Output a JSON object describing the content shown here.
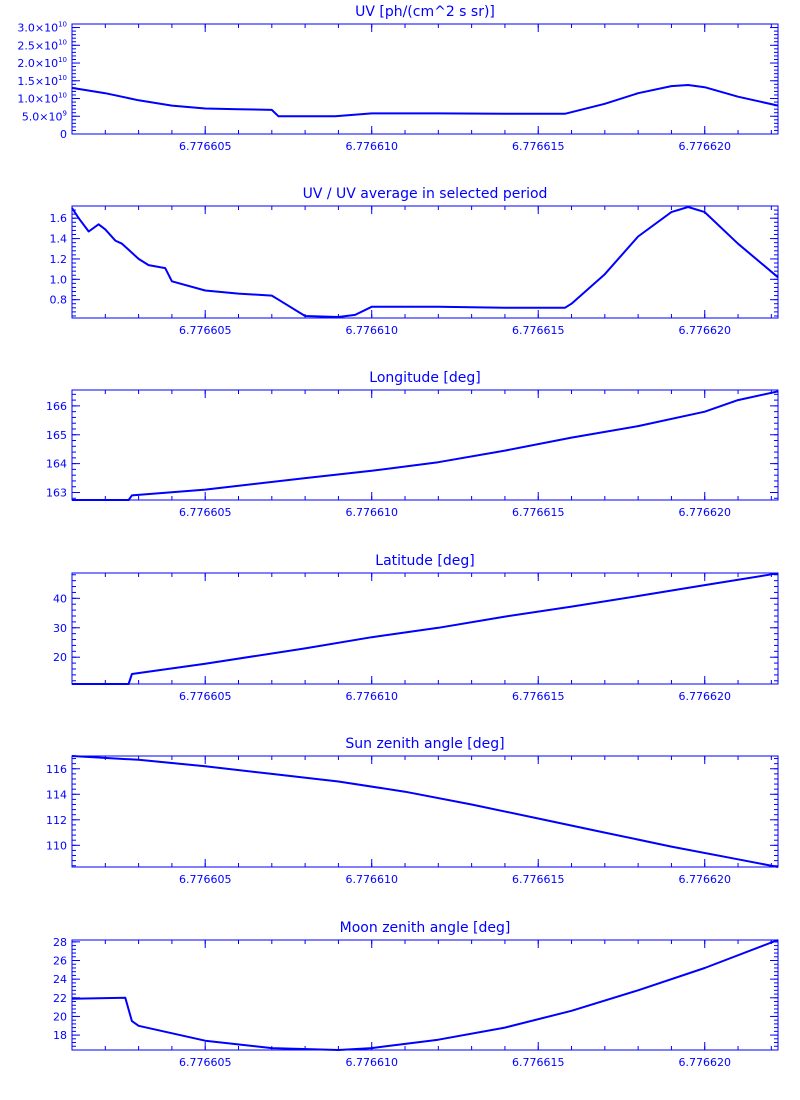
{
  "colors": {
    "ink": "#0000ff",
    "background": "#ffffff"
  },
  "chart_data": [
    {
      "type": "line",
      "title": "UV [ph/(cm^2 s sr)]",
      "xlim": [
        6.776601,
        6.7766222
      ],
      "ylim": [
        0,
        31000000000.0
      ],
      "xticks": [
        6.776605,
        6.77661,
        6.776615,
        6.77662
      ],
      "xtick_labels": [
        "6.776605",
        "6.776610",
        "6.776615",
        "6.776620"
      ],
      "yticks": [
        {
          "value": 0,
          "mant": "0",
          "exp": ""
        },
        {
          "value": 5000000000.0,
          "mant": "5.0×10",
          "exp": "9"
        },
        {
          "value": 10000000000.0,
          "mant": "1.0×10",
          "exp": "10"
        },
        {
          "value": 15000000000.0,
          "mant": "1.5×10",
          "exp": "10"
        },
        {
          "value": 20000000000.0,
          "mant": "2.0×10",
          "exp": "10"
        },
        {
          "value": 25000000000.0,
          "mant": "2.5×10",
          "exp": "10"
        },
        {
          "value": 30000000000.0,
          "mant": "3.0×10",
          "exp": "10"
        }
      ],
      "grid": false,
      "series": [
        {
          "x": [
            6.776601,
            6.776602,
            6.776603,
            6.776604,
            6.776605,
            6.776606,
            6.776607,
            6.7766072,
            6.776608,
            6.7766089,
            6.77661,
            6.776612,
            6.776614,
            6.7766158,
            6.776617,
            6.776618,
            6.776619,
            6.7766195,
            6.77662,
            6.776621,
            6.7766222
          ],
          "y": [
            13000000000.0,
            11500000000.0,
            9500000000.0,
            8000000000.0,
            7200000000.0,
            7000000000.0,
            6800000000.0,
            5000000000.0,
            5000000000.0,
            5000000000.0,
            5800000000.0,
            5800000000.0,
            5700000000.0,
            5700000000.0,
            8500000000.0,
            11500000000.0,
            13500000000.0,
            13800000000.0,
            13200000000.0,
            10500000000.0,
            8000000000.0
          ]
        }
      ]
    },
    {
      "type": "line",
      "title": "UV / UV average in selected period",
      "xlim": [
        6.776601,
        6.7766222
      ],
      "ylim": [
        0.62,
        1.72
      ],
      "xticks": [
        6.776605,
        6.77661,
        6.776615,
        6.77662
      ],
      "xtick_labels": [
        "6.776605",
        "6.776610",
        "6.776615",
        "6.776620"
      ],
      "yticks": [
        {
          "value": 0.8,
          "mant": "0.8",
          "exp": ""
        },
        {
          "value": 1.0,
          "mant": "1.0",
          "exp": ""
        },
        {
          "value": 1.2,
          "mant": "1.2",
          "exp": ""
        },
        {
          "value": 1.4,
          "mant": "1.4",
          "exp": ""
        },
        {
          "value": 1.6,
          "mant": "1.6",
          "exp": ""
        }
      ],
      "grid": false,
      "series": [
        {
          "x": [
            6.776601,
            6.7766012,
            6.7766015,
            6.7766018,
            6.776602,
            6.7766023,
            6.7766025,
            6.776603,
            6.7766033,
            6.7766038,
            6.776604,
            6.776605,
            6.776606,
            6.776607,
            6.7766072,
            6.776608,
            6.776609,
            6.7766095,
            6.77661,
            6.776612,
            6.776614,
            6.7766158,
            6.776616,
            6.776617,
            6.776618,
            6.776619,
            6.7766195,
            6.77662,
            6.776621,
            6.7766222
          ],
          "y": [
            1.7,
            1.6,
            1.47,
            1.54,
            1.49,
            1.38,
            1.35,
            1.2,
            1.14,
            1.11,
            0.98,
            0.89,
            0.86,
            0.84,
            0.8,
            0.64,
            0.63,
            0.65,
            0.73,
            0.73,
            0.72,
            0.72,
            0.76,
            1.05,
            1.42,
            1.66,
            1.71,
            1.66,
            1.35,
            1.02
          ]
        }
      ]
    },
    {
      "type": "line",
      "title": "Longitude [deg]",
      "xlim": [
        6.776601,
        6.7766222
      ],
      "ylim": [
        162.74,
        166.55
      ],
      "xticks": [
        6.776605,
        6.77661,
        6.776615,
        6.77662
      ],
      "xtick_labels": [
        "6.776605",
        "6.776610",
        "6.776615",
        "6.776620"
      ],
      "yticks": [
        {
          "value": 163,
          "mant": "163",
          "exp": ""
        },
        {
          "value": 164,
          "mant": "164",
          "exp": ""
        },
        {
          "value": 165,
          "mant": "165",
          "exp": ""
        },
        {
          "value": 166,
          "mant": "166",
          "exp": ""
        }
      ],
      "grid": false,
      "series": [
        {
          "x": [
            6.776601,
            6.7766027,
            6.7766028,
            6.776605,
            6.776608,
            6.77661,
            6.776612,
            6.776614,
            6.776616,
            6.776618,
            6.77662,
            6.776621,
            6.7766222
          ],
          "y": [
            162.74,
            162.74,
            162.9,
            163.1,
            163.5,
            163.75,
            164.05,
            164.45,
            164.9,
            165.3,
            165.8,
            166.2,
            166.5
          ]
        }
      ]
    },
    {
      "type": "line",
      "title": "Latitude [deg]",
      "xlim": [
        6.776601,
        6.7766222
      ],
      "ylim": [
        10.9,
        48.6
      ],
      "xticks": [
        6.776605,
        6.77661,
        6.776615,
        6.77662
      ],
      "xtick_labels": [
        "6.776605",
        "6.776610",
        "6.776615",
        "6.776620"
      ],
      "yticks": [
        {
          "value": 20,
          "mant": "20",
          "exp": ""
        },
        {
          "value": 30,
          "mant": "30",
          "exp": ""
        },
        {
          "value": 40,
          "mant": "40",
          "exp": ""
        }
      ],
      "grid": false,
      "series": [
        {
          "x": [
            6.776601,
            6.7766027,
            6.7766028,
            6.776605,
            6.776608,
            6.77661,
            6.776612,
            6.776614,
            6.776616,
            6.776618,
            6.77662,
            6.7766222
          ],
          "y": [
            10.9,
            10.9,
            14.3,
            17.8,
            23.0,
            26.8,
            30.0,
            33.8,
            37.2,
            40.8,
            44.5,
            48.5
          ]
        }
      ]
    },
    {
      "type": "line",
      "title": "Sun zenith angle [deg]",
      "xlim": [
        6.776601,
        6.7766222
      ],
      "ylim": [
        108.3,
        117.0
      ],
      "xticks": [
        6.776605,
        6.77661,
        6.776615,
        6.77662
      ],
      "xtick_labels": [
        "6.776605",
        "6.776610",
        "6.776615",
        "6.776620"
      ],
      "yticks": [
        {
          "value": 110,
          "mant": "110",
          "exp": ""
        },
        {
          "value": 112,
          "mant": "112",
          "exp": ""
        },
        {
          "value": 114,
          "mant": "114",
          "exp": ""
        },
        {
          "value": 116,
          "mant": "116",
          "exp": ""
        }
      ],
      "grid": false,
      "series": [
        {
          "x": [
            6.776601,
            6.776603,
            6.776605,
            6.776607,
            6.776609,
            6.776611,
            6.776613,
            6.776615,
            6.776617,
            6.776619,
            6.776621,
            6.7766222
          ],
          "y": [
            117.0,
            116.7,
            116.2,
            115.6,
            115.0,
            114.2,
            113.2,
            112.1,
            111.0,
            109.9,
            108.9,
            108.3
          ]
        }
      ]
    },
    {
      "type": "line",
      "title": "Moon zenith angle [deg]",
      "xlim": [
        6.776601,
        6.7766222
      ],
      "ylim": [
        16.4,
        28.2
      ],
      "xticks": [
        6.776605,
        6.77661,
        6.776615,
        6.77662
      ],
      "xtick_labels": [
        "6.776605",
        "6.776610",
        "6.776615",
        "6.776620"
      ],
      "yticks": [
        {
          "value": 18,
          "mant": "18",
          "exp": ""
        },
        {
          "value": 20,
          "mant": "20",
          "exp": ""
        },
        {
          "value": 22,
          "mant": "22",
          "exp": ""
        },
        {
          "value": 24,
          "mant": "24",
          "exp": ""
        },
        {
          "value": 26,
          "mant": "26",
          "exp": ""
        },
        {
          "value": 28,
          "mant": "28",
          "exp": ""
        }
      ],
      "grid": false,
      "series": [
        {
          "x": [
            6.776601,
            6.7766026,
            6.7766028,
            6.776603,
            6.776605,
            6.776607,
            6.776609,
            6.77661,
            6.776612,
            6.776614,
            6.776616,
            6.776618,
            6.77662,
            6.7766222
          ],
          "y": [
            21.9,
            22.0,
            19.5,
            19.0,
            17.4,
            16.6,
            16.4,
            16.6,
            17.5,
            18.8,
            20.6,
            22.8,
            25.2,
            28.2
          ]
        }
      ]
    }
  ]
}
